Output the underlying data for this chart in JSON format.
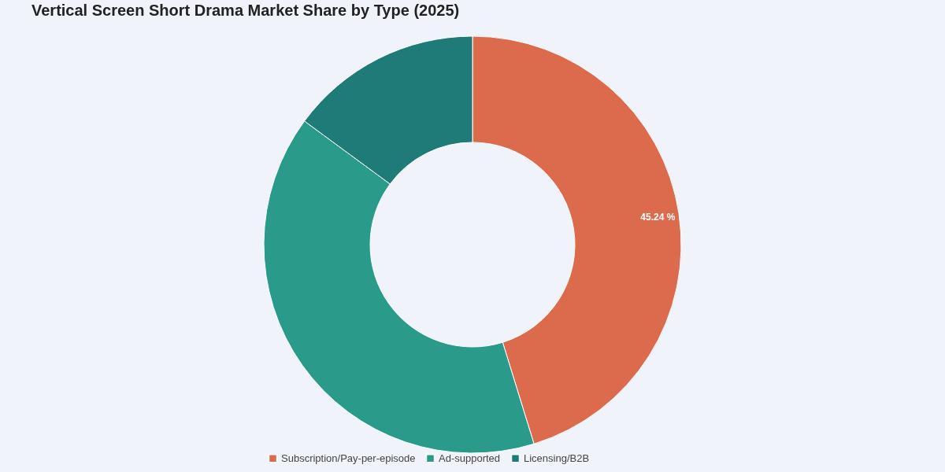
{
  "chart_data": {
    "type": "donut",
    "title": "Vertical Screen Short Drama Market Share by Type (2025)",
    "categories": [
      "Subscription/Pay-per-episode",
      "Ad-supported",
      "Licensing/B2B"
    ],
    "values": [
      45.24,
      39.86,
      14.9
    ],
    "colors": [
      "#dc6b4e",
      "#2a9a8a",
      "#1f7b78"
    ],
    "value_labels": [
      "45.24 %",
      null,
      null
    ],
    "legend": "bottom"
  }
}
